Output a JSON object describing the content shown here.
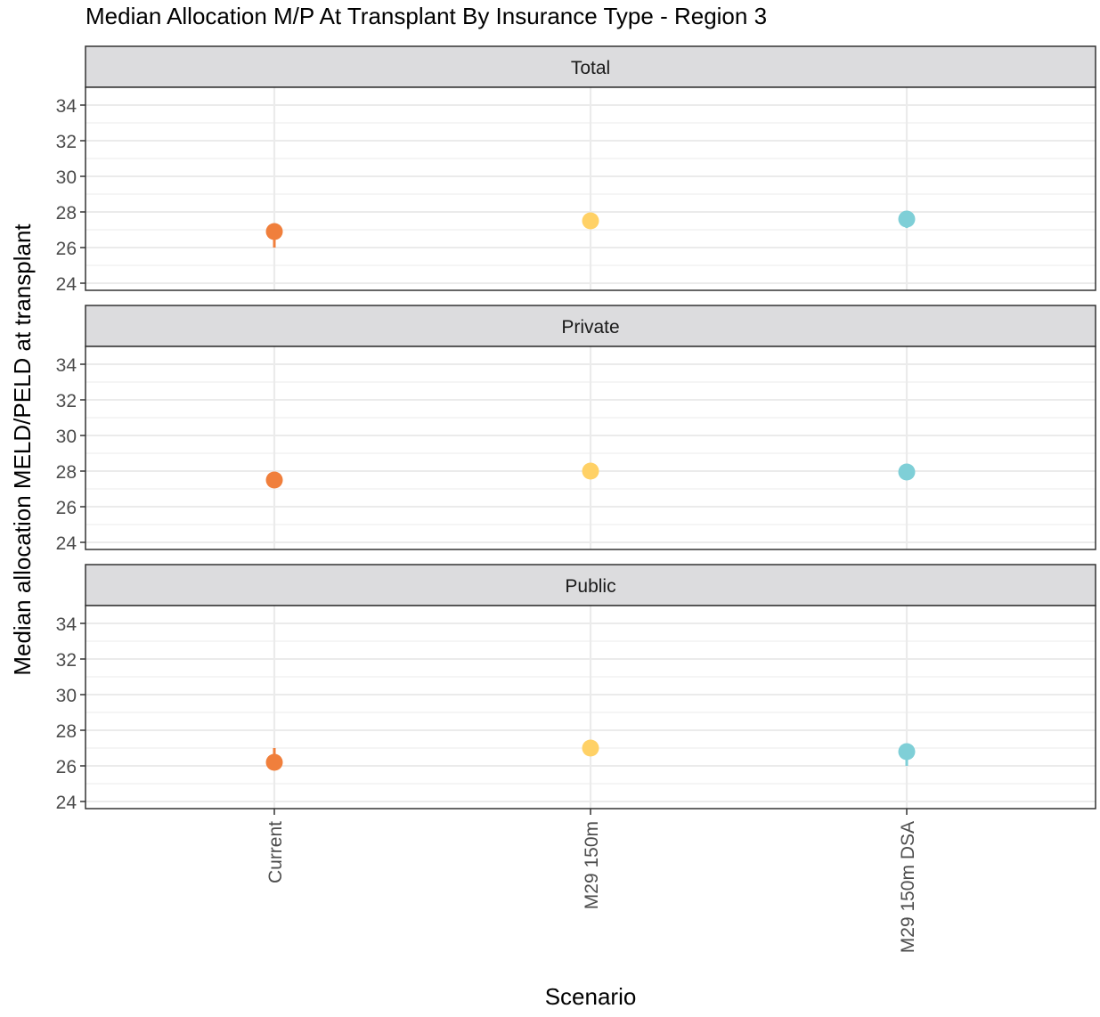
{
  "chart_data": {
    "type": "scatter",
    "title": "Median Allocation M/P At Transplant By Insurance Type - Region 3",
    "xlabel": "Scenario",
    "ylabel": "Median allocation MELD/PELD at transplant",
    "categories": [
      "Current",
      "M29 150m",
      "M29 150m DSA"
    ],
    "colors": [
      "#F07F3C",
      "#FFD166",
      "#7FCFD7"
    ],
    "ylim": [
      23.6,
      35
    ],
    "yticks": [
      24,
      26,
      28,
      30,
      32,
      34
    ],
    "grid": true,
    "legend": "none",
    "panels": [
      {
        "name": "Total",
        "values": [
          26.9,
          27.5,
          27.6
        ],
        "lower": [
          26.0,
          27.2,
          27.1
        ],
        "upper": [
          27.0,
          27.7,
          27.8
        ]
      },
      {
        "name": "Private",
        "values": [
          27.5,
          28.0,
          27.95
        ],
        "lower": [
          27.1,
          27.7,
          27.6
        ],
        "upper": [
          27.8,
          28.2,
          28.2
        ]
      },
      {
        "name": "Public",
        "values": [
          26.2,
          27.0,
          26.8
        ],
        "lower": [
          25.9,
          26.7,
          26.0
        ],
        "upper": [
          27.0,
          27.2,
          27.0
        ]
      }
    ]
  }
}
